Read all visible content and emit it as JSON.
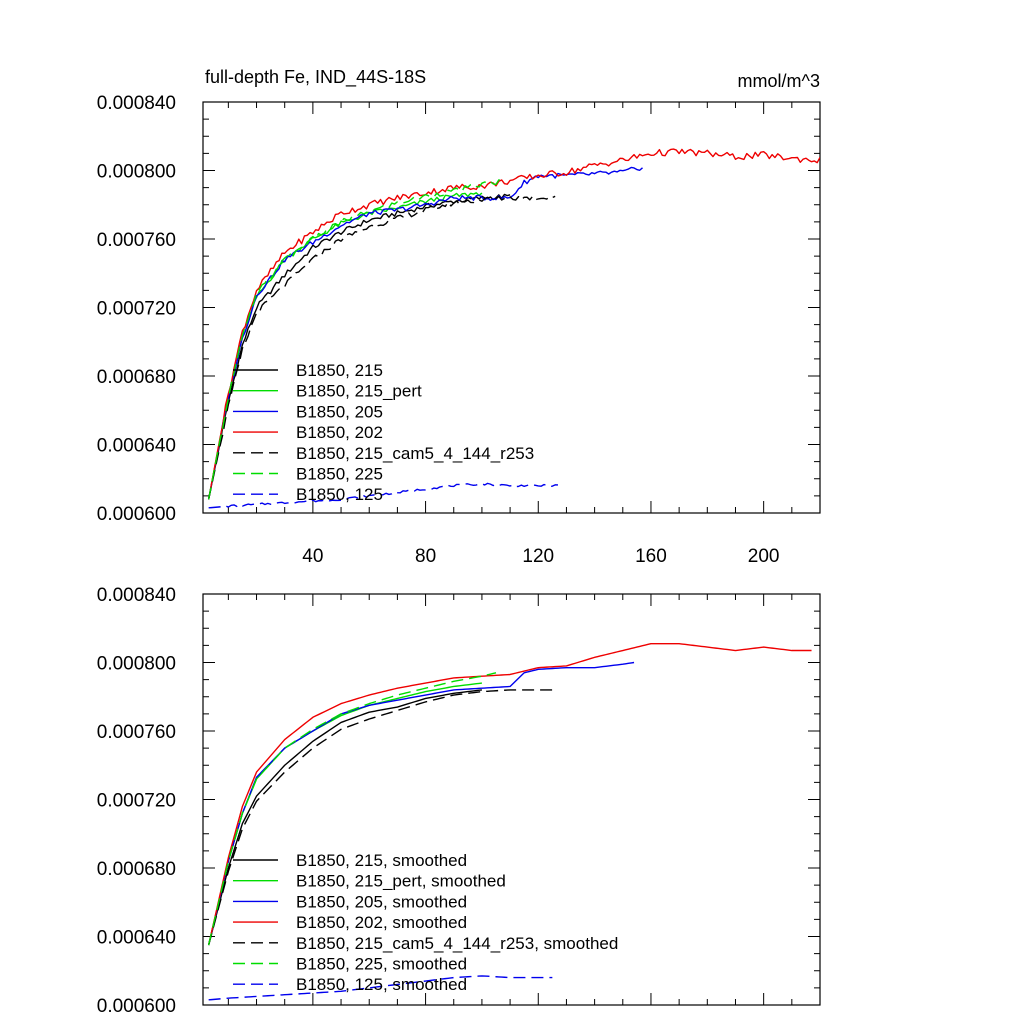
{
  "chart_data": [
    {
      "type": "line",
      "title": "full-depth Fe, IND_44S-18S",
      "units": "mmol/m^3",
      "xlim": [
        1,
        220
      ],
      "ylim": [
        0.0006,
        0.00084
      ],
      "xticks": [
        40,
        80,
        120,
        160,
        200
      ],
      "xtick_labels": [
        "40",
        "80",
        "120",
        "160",
        "200"
      ],
      "yticks": [
        0.0006,
        0.00064,
        0.00068,
        0.00072,
        0.00076,
        0.0008,
        0.00084
      ],
      "ytick_labels": [
        "0.000600",
        "0.000640",
        "0.000680",
        "0.000720",
        "0.000760",
        "0.000800",
        "0.000840"
      ],
      "series": [
        {
          "name": "B1850, 215",
          "color": "#000000",
          "dash": "solid",
          "wiggle": 1.5e-06,
          "points": [
            [
              3,
              0.000608
            ],
            [
              10,
              0.000665
            ],
            [
              15,
              0.000698
            ],
            [
              20,
              0.00072
            ],
            [
              30,
              0.000739
            ],
            [
              40,
              0.000755
            ],
            [
              50,
              0.000764
            ],
            [
              60,
              0.000771
            ],
            [
              70,
              0.000775
            ],
            [
              80,
              0.000779
            ],
            [
              90,
              0.000782
            ],
            [
              100,
              0.000784
            ],
            [
              110,
              0.000785
            ]
          ]
        },
        {
          "name": "B1850, 215_pert",
          "color": "#00dd00",
          "dash": "solid",
          "wiggle": 1.5e-06,
          "points": [
            [
              3,
              0.000608
            ],
            [
              10,
              0.000668
            ],
            [
              15,
              0.000702
            ],
            [
              20,
              0.000726
            ],
            [
              30,
              0.000748
            ],
            [
              40,
              0.00076
            ],
            [
              50,
              0.000769
            ],
            [
              60,
              0.000775
            ],
            [
              70,
              0.000778
            ],
            [
              80,
              0.000782
            ],
            [
              90,
              0.000785
            ],
            [
              100,
              0.000787
            ]
          ]
        },
        {
          "name": "B1850, 205",
          "color": "#0000ee",
          "dash": "solid",
          "wiggle": 1.5e-06,
          "points": [
            [
              3,
              0.000608
            ],
            [
              10,
              0.000668
            ],
            [
              15,
              0.000702
            ],
            [
              20,
              0.000727
            ],
            [
              30,
              0.000748
            ],
            [
              40,
              0.000758
            ],
            [
              50,
              0.000768
            ],
            [
              60,
              0.000775
            ],
            [
              70,
              0.000777
            ],
            [
              80,
              0.00078
            ],
            [
              90,
              0.000784
            ],
            [
              100,
              0.000784
            ],
            [
              110,
              0.000784
            ],
            [
              115,
              0.000793
            ],
            [
              120,
              0.000797
            ],
            [
              130,
              0.000797
            ],
            [
              140,
              0.000798
            ],
            [
              150,
              0.000799
            ],
            [
              157,
              0.000802
            ]
          ]
        },
        {
          "name": "B1850, 202",
          "color": "#ee0000",
          "dash": "solid",
          "wiggle": 2e-06,
          "points": [
            [
              3,
              0.000608
            ],
            [
              10,
              0.00067
            ],
            [
              15,
              0.000706
            ],
            [
              20,
              0.00073
            ],
            [
              30,
              0.000752
            ],
            [
              40,
              0.000764
            ],
            [
              50,
              0.000775
            ],
            [
              60,
              0.00078
            ],
            [
              70,
              0.000784
            ],
            [
              80,
              0.000787
            ],
            [
              90,
              0.00079
            ],
            [
              100,
              0.000791
            ],
            [
              110,
              0.000794
            ],
            [
              120,
              0.000797
            ],
            [
              130,
              0.000799
            ],
            [
              140,
              0.000803
            ],
            [
              150,
              0.000806
            ],
            [
              160,
              0.00081
            ],
            [
              170,
              0.000811
            ],
            [
              180,
              0.00081
            ],
            [
              190,
              0.000808
            ],
            [
              200,
              0.000809
            ],
            [
              210,
              0.000807
            ],
            [
              220,
              0.000806
            ]
          ]
        },
        {
          "name": "B1850, 215_cam5_4_144_r253",
          "color": "#000000",
          "dash": "12,6",
          "wiggle": 1.5e-06,
          "points": [
            [
              3,
              0.000608
            ],
            [
              10,
              0.000662
            ],
            [
              15,
              0.000695
            ],
            [
              20,
              0.000717
            ],
            [
              30,
              0.000733
            ],
            [
              40,
              0.000748
            ],
            [
              50,
              0.00076
            ],
            [
              60,
              0.000767
            ],
            [
              70,
              0.000772
            ],
            [
              80,
              0.000777
            ],
            [
              90,
              0.000781
            ],
            [
              100,
              0.000783
            ],
            [
              110,
              0.000784
            ],
            [
              120,
              0.000784
            ],
            [
              126,
              0.000785
            ]
          ]
        },
        {
          "name": "B1850, 225",
          "color": "#00dd00",
          "dash": "12,6",
          "wiggle": 1.5e-06,
          "points": [
            [
              3,
              0.000608
            ],
            [
              10,
              0.000668
            ],
            [
              15,
              0.000703
            ],
            [
              20,
              0.000728
            ],
            [
              30,
              0.000748
            ],
            [
              40,
              0.00076
            ],
            [
              50,
              0.00077
            ],
            [
              60,
              0.000776
            ],
            [
              70,
              0.000781
            ],
            [
              80,
              0.000785
            ],
            [
              90,
              0.000788
            ],
            [
              100,
              0.000792
            ],
            [
              108,
              0.000794
            ]
          ]
        },
        {
          "name": "B1850, 125",
          "color": "#0000ee",
          "dash": "12,6",
          "wiggle": 6e-07,
          "points": [
            [
              3,
              0.000603
            ],
            [
              10,
              0.000604
            ],
            [
              20,
              0.000605
            ],
            [
              30,
              0.000606
            ],
            [
              40,
              0.000607
            ],
            [
              50,
              0.000608
            ],
            [
              60,
              0.00061
            ],
            [
              70,
              0.000612
            ],
            [
              80,
              0.000614
            ],
            [
              90,
              0.000616
            ],
            [
              100,
              0.000617
            ],
            [
              110,
              0.000616
            ],
            [
              120,
              0.000616
            ],
            [
              127,
              0.000616
            ]
          ]
        }
      ]
    },
    {
      "type": "line",
      "title": "",
      "units": "",
      "xlim": [
        1,
        220
      ],
      "ylim": [
        0.0006,
        0.00084
      ],
      "xticks": [
        40,
        80,
        120,
        160,
        200
      ],
      "xtick_labels": [],
      "yticks": [
        0.0006,
        0.00064,
        0.00068,
        0.00072,
        0.00076,
        0.0008,
        0.00084
      ],
      "ytick_labels": [
        "0.000600",
        "0.000640",
        "0.000680",
        "0.000720",
        "0.000760",
        "0.000800",
        "0.000840"
      ],
      "series": [
        {
          "name": "B1850, 215, smoothed",
          "color": "#000000",
          "dash": "solid",
          "wiggle": 0,
          "points": [
            [
              3,
              0.000635
            ],
            [
              10,
              0.00068
            ],
            [
              15,
              0.000706
            ],
            [
              20,
              0.000722
            ],
            [
              30,
              0.00074
            ],
            [
              40,
              0.000754
            ],
            [
              50,
              0.000765
            ],
            [
              60,
              0.000771
            ],
            [
              70,
              0.000774
            ],
            [
              80,
              0.000779
            ],
            [
              90,
              0.000782
            ],
            [
              100,
              0.000784
            ]
          ]
        },
        {
          "name": "B1850, 215_pert, smoothed",
          "color": "#00dd00",
          "dash": "solid",
          "wiggle": 0,
          "points": [
            [
              3,
              0.000635
            ],
            [
              10,
              0.000684
            ],
            [
              15,
              0.000712
            ],
            [
              20,
              0.000732
            ],
            [
              30,
              0.00075
            ],
            [
              40,
              0.00076
            ],
            [
              50,
              0.000769
            ],
            [
              60,
              0.000775
            ],
            [
              70,
              0.000779
            ],
            [
              80,
              0.000783
            ],
            [
              90,
              0.000786
            ],
            [
              100,
              0.000788
            ]
          ]
        },
        {
          "name": "B1850, 205, smoothed",
          "color": "#0000ee",
          "dash": "solid",
          "wiggle": 0,
          "points": [
            [
              3,
              0.000635
            ],
            [
              10,
              0.000684
            ],
            [
              15,
              0.000712
            ],
            [
              20,
              0.000733
            ],
            [
              30,
              0.00075
            ],
            [
              40,
              0.00076
            ],
            [
              50,
              0.00077
            ],
            [
              60,
              0.000775
            ],
            [
              70,
              0.000778
            ],
            [
              80,
              0.000781
            ],
            [
              90,
              0.000784
            ],
            [
              100,
              0.000785
            ],
            [
              110,
              0.000786
            ],
            [
              115,
              0.000794
            ],
            [
              120,
              0.000796
            ],
            [
              130,
              0.000797
            ],
            [
              140,
              0.000797
            ],
            [
              150,
              0.000799
            ],
            [
              154,
              0.0008
            ]
          ]
        },
        {
          "name": "B1850, 202, smoothed",
          "color": "#ee0000",
          "dash": "solid",
          "wiggle": 0,
          "points": [
            [
              3,
              0.000635
            ],
            [
              10,
              0.000686
            ],
            [
              15,
              0.000716
            ],
            [
              20,
              0.000736
            ],
            [
              30,
              0.000755
            ],
            [
              40,
              0.000768
            ],
            [
              50,
              0.000776
            ],
            [
              60,
              0.000781
            ],
            [
              70,
              0.000785
            ],
            [
              80,
              0.000788
            ],
            [
              90,
              0.000791
            ],
            [
              100,
              0.000792
            ],
            [
              110,
              0.000793
            ],
            [
              120,
              0.000797
            ],
            [
              130,
              0.000798
            ],
            [
              140,
              0.000803
            ],
            [
              150,
              0.000807
            ],
            [
              160,
              0.000811
            ],
            [
              170,
              0.000811
            ],
            [
              180,
              0.000809
            ],
            [
              190,
              0.000807
            ],
            [
              200,
              0.000809
            ],
            [
              210,
              0.000807
            ],
            [
              217,
              0.000807
            ]
          ]
        },
        {
          "name": "B1850, 215_cam5_4_144_r253, smoothed",
          "color": "#000000",
          "dash": "12,6",
          "wiggle": 0,
          "points": [
            [
              3,
              0.000635
            ],
            [
              10,
              0.000678
            ],
            [
              15,
              0.000703
            ],
            [
              20,
              0.000719
            ],
            [
              30,
              0.000736
            ],
            [
              40,
              0.00075
            ],
            [
              50,
              0.000761
            ],
            [
              60,
              0.000767
            ],
            [
              70,
              0.000772
            ],
            [
              80,
              0.000777
            ],
            [
              90,
              0.000781
            ],
            [
              100,
              0.000783
            ],
            [
              110,
              0.000784
            ],
            [
              120,
              0.000784
            ],
            [
              125,
              0.000784
            ]
          ]
        },
        {
          "name": "B1850, 225, smoothed",
          "color": "#00dd00",
          "dash": "12,6",
          "wiggle": 0,
          "points": [
            [
              3,
              0.000635
            ],
            [
              10,
              0.000684
            ],
            [
              15,
              0.000712
            ],
            [
              20,
              0.000732
            ],
            [
              30,
              0.00075
            ],
            [
              40,
              0.000761
            ],
            [
              50,
              0.00077
            ],
            [
              60,
              0.000776
            ],
            [
              70,
              0.000781
            ],
            [
              80,
              0.000785
            ],
            [
              90,
              0.000789
            ],
            [
              100,
              0.000792
            ],
            [
              105,
              0.000794
            ]
          ]
        },
        {
          "name": "B1850, 125, smoothed",
          "color": "#0000ee",
          "dash": "12,6",
          "wiggle": 0,
          "points": [
            [
              3,
              0.000603
            ],
            [
              10,
              0.000604
            ],
            [
              20,
              0.000605
            ],
            [
              30,
              0.000606
            ],
            [
              40,
              0.000607
            ],
            [
              50,
              0.000608
            ],
            [
              60,
              0.00061
            ],
            [
              70,
              0.000612
            ],
            [
              80,
              0.000614
            ],
            [
              90,
              0.000616
            ],
            [
              100,
              0.000617
            ],
            [
              110,
              0.000616
            ],
            [
              120,
              0.000616
            ],
            [
              125,
              0.000616
            ]
          ]
        }
      ]
    }
  ]
}
